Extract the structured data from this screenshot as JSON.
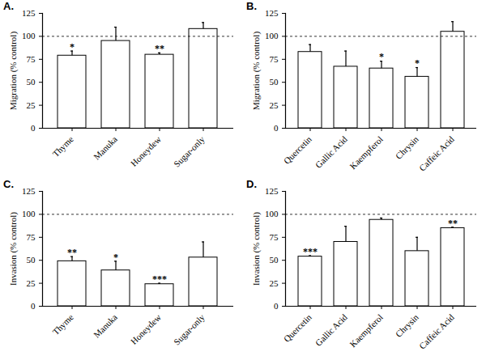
{
  "chart_data": [
    {
      "type": "bar",
      "title": "A.",
      "y_label": "Migration (% control)",
      "categories": [
        "Thyme",
        "Manuka",
        "Honeydew",
        "Sugar-only"
      ],
      "values": [
        79,
        95,
        80,
        108
      ],
      "errors": [
        5,
        15,
        2,
        7
      ],
      "annotations": [
        "*",
        null,
        "**",
        null
      ],
      "reference_line": 100,
      "ylim": [
        0,
        125
      ],
      "yticks": [
        0,
        25,
        50,
        75,
        100,
        125
      ],
      "color": "#ffffff",
      "grid": false
    },
    {
      "type": "bar",
      "title": "B.",
      "y_label": "Migration (% control)",
      "categories": [
        "Quercetin",
        "Gallic Acid",
        "Kaempferol",
        "Chrysin",
        "Caffeic Acid"
      ],
      "values": [
        83,
        67,
        65,
        56,
        105
      ],
      "errors": [
        8,
        17,
        8,
        10,
        11
      ],
      "annotations": [
        null,
        null,
        "*",
        "*",
        null
      ],
      "reference_line": 100,
      "ylim": [
        0,
        125
      ],
      "yticks": [
        0,
        25,
        50,
        75,
        100,
        125
      ],
      "color": "#ffffff",
      "grid": false
    },
    {
      "type": "bar",
      "title": "C.",
      "y_label": "Invasion (% control)",
      "categories": [
        "Thyme",
        "Manuka",
        "Honeydew",
        "Sugar-only"
      ],
      "values": [
        49,
        39,
        24,
        53
      ],
      "errors": [
        5,
        10,
        1,
        17
      ],
      "annotations": [
        "**",
        "*",
        "***",
        null
      ],
      "reference_line": 100,
      "ylim": [
        0,
        125
      ],
      "yticks": [
        0,
        25,
        50,
        75,
        100,
        125
      ],
      "color": "#ffffff",
      "grid": false
    },
    {
      "type": "bar",
      "title": "D.",
      "y_label": "Invasion (% control)",
      "categories": [
        "Quercetin",
        "Gallic Acid",
        "Kaempferol",
        "Chrysin",
        "Caffeic Acid"
      ],
      "values": [
        54,
        70,
        94,
        60,
        85
      ],
      "errors": [
        1,
        17,
        2,
        15,
        1
      ],
      "annotations": [
        "***",
        null,
        null,
        null,
        "**"
      ],
      "reference_line": 100,
      "ylim": [
        0,
        125
      ],
      "yticks": [
        0,
        25,
        50,
        75,
        100,
        125
      ],
      "color": "#ffffff",
      "grid": false
    }
  ]
}
